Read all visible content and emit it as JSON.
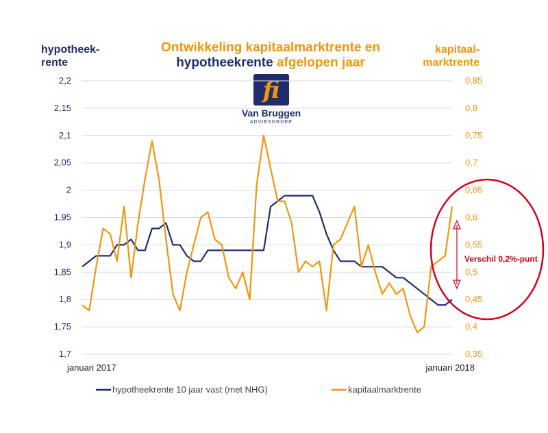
{
  "colors": {
    "hypotheek": "#1f2d6e",
    "kapitaal": "#f0960f",
    "annotation": "#d0021b",
    "axis_text": "#444444",
    "logo_text": "#1f2d6e"
  },
  "header": {
    "title_line1": "Ontwikkeling kapitaalmarktrente en",
    "title_line2_a": "hypotheekrente",
    "title_line2_b": " afgelopen jaar",
    "left_axis_title_1": "hypotheek-",
    "left_axis_title_2": "rente",
    "right_axis_title_1": "kapitaal-",
    "right_axis_title_2": "marktrente"
  },
  "logo": {
    "mark": "fi",
    "name": "Van Bruggen",
    "sub": "ADVIESGROEP",
    "icon": "van-bruggen-logo-icon"
  },
  "annotation": {
    "label": "Verschil 0,2%-punt"
  },
  "chart_data": {
    "type": "line",
    "x_labels": [
      "januari 2017",
      "januari 2018"
    ],
    "y_left": {
      "ylim": [
        1.7,
        2.2
      ],
      "ticks": [
        "1,7",
        "1,75",
        "1,8",
        "1,85",
        "1,9",
        "1,95",
        "2",
        "2,05",
        "2,1",
        "2,15",
        "2,2"
      ]
    },
    "y_right": {
      "ylim": [
        0.35,
        0.85
      ],
      "ticks": [
        "0,35",
        "0,4",
        "0,45",
        "0,5",
        "0,55",
        "0,6",
        "0,65",
        "0,7",
        "0,75",
        "0,8",
        "0,85"
      ]
    },
    "grid": "horizontal",
    "legend_position": "bottom",
    "series": [
      {
        "name": "hypotheekrente 10 jaar vast (met NHG)",
        "axis": "left",
        "values": [
          1.86,
          1.87,
          1.88,
          1.88,
          1.88,
          1.9,
          1.9,
          1.91,
          1.89,
          1.89,
          1.93,
          1.93,
          1.94,
          1.9,
          1.9,
          1.88,
          1.87,
          1.87,
          1.89,
          1.89,
          1.89,
          1.89,
          1.89,
          1.89,
          1.89,
          1.89,
          1.89,
          1.97,
          1.98,
          1.99,
          1.99,
          1.99,
          1.99,
          1.99,
          1.96,
          1.92,
          1.89,
          1.87,
          1.87,
          1.87,
          1.86,
          1.86,
          1.86,
          1.86,
          1.85,
          1.84,
          1.84,
          1.83,
          1.82,
          1.81,
          1.8,
          1.79,
          1.79,
          1.8
        ]
      },
      {
        "name": "kapitaalmarktrente",
        "axis": "right",
        "values": [
          0.44,
          0.43,
          0.51,
          0.58,
          0.57,
          0.52,
          0.62,
          0.49,
          0.59,
          0.67,
          0.74,
          0.67,
          0.56,
          0.46,
          0.43,
          0.5,
          0.55,
          0.6,
          0.61,
          0.56,
          0.55,
          0.49,
          0.47,
          0.5,
          0.45,
          0.66,
          0.75,
          0.69,
          0.63,
          0.63,
          0.59,
          0.5,
          0.52,
          0.51,
          0.52,
          0.43,
          0.55,
          0.56,
          0.59,
          0.62,
          0.51,
          0.55,
          0.5,
          0.46,
          0.48,
          0.46,
          0.47,
          0.42,
          0.39,
          0.4,
          0.51,
          0.52,
          0.53,
          0.62
        ]
      }
    ]
  }
}
